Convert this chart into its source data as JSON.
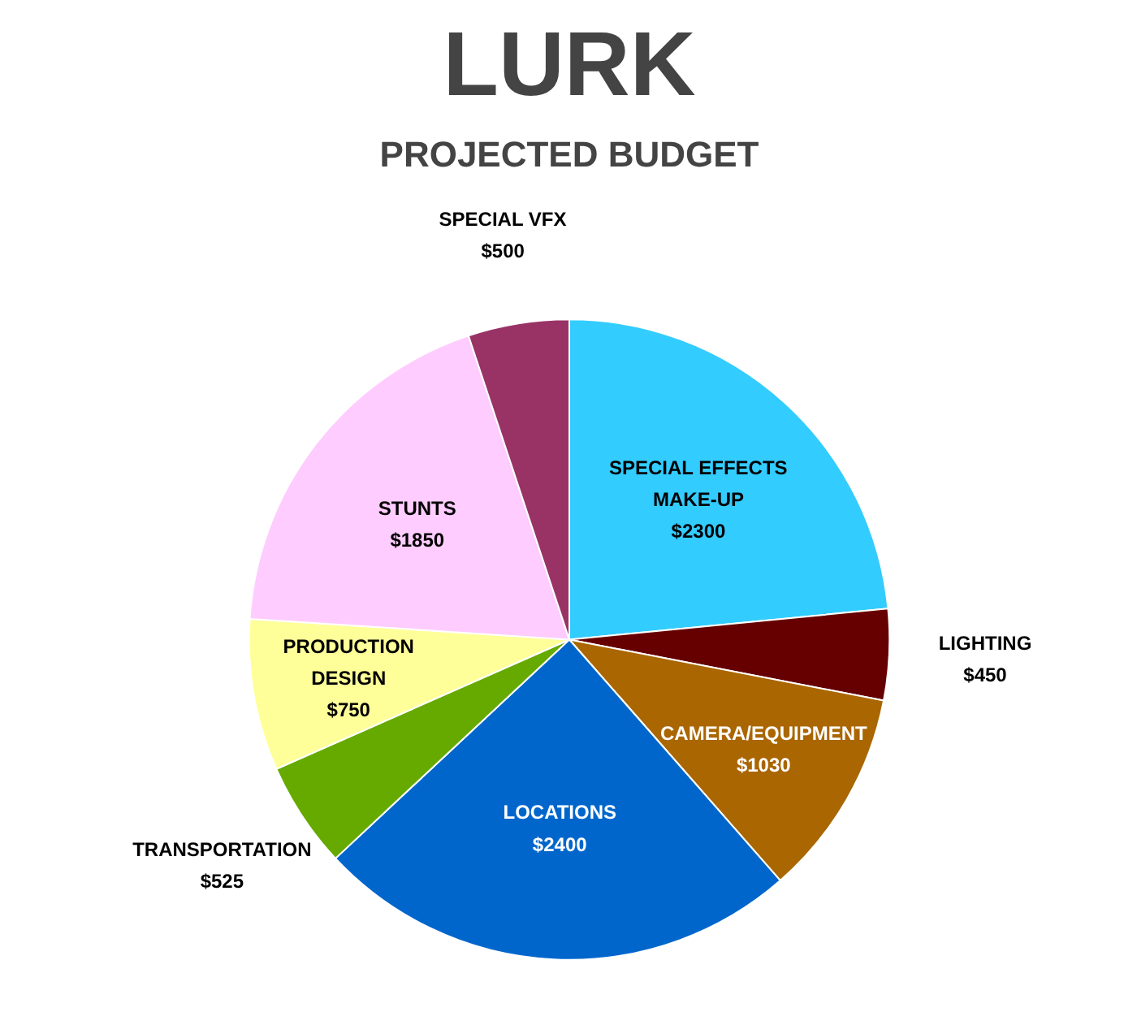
{
  "chart_data": {
    "type": "pie",
    "title": "LURK",
    "subtitle": "PROJECTED BUDGET",
    "categories": [
      "SPECIAL EFFECTS MAKE-UP",
      "LIGHTING",
      "CAMERA/EQUIPMENT",
      "LOCATIONS",
      "TRANSPORTATION",
      "PRODUCTION DESIGN",
      "STUNTS",
      "SPECIAL VFX"
    ],
    "values": [
      2300,
      450,
      1030,
      2400,
      525,
      750,
      1850,
      500
    ],
    "value_labels": [
      "$2300",
      "$450",
      "$1030",
      "$2400",
      "$525",
      "$750",
      "$1850",
      "$500"
    ],
    "colors": [
      "#33ccff",
      "#660000",
      "#aa6600",
      "#0066cc",
      "#66aa00",
      "#ffff99",
      "#ffccff",
      "#993366"
    ]
  }
}
